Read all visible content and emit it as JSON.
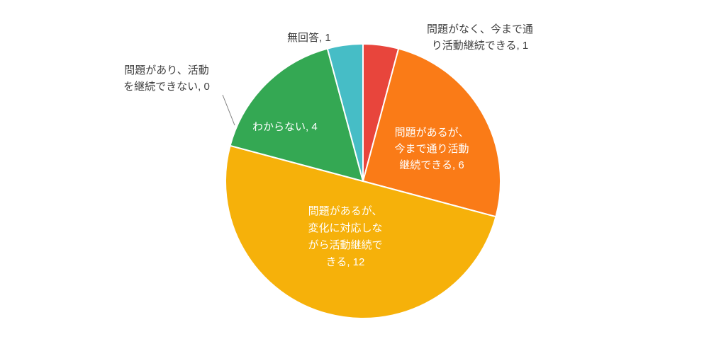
{
  "chart_data": {
    "type": "pie",
    "title": "",
    "total": 24,
    "start_angle_deg": 0,
    "direction": "clockwise",
    "legend": "none",
    "background_color": "#ffffff",
    "outside_label_color": "#404040",
    "inside_label_color": "#ffffff",
    "slices": [
      {
        "name": "問題がなく、今まで通り活動継続できる",
        "value": 1,
        "color": "#E8453C",
        "label_placement": "outside-top-right",
        "label_lines": [
          "問題がなく、今まで通",
          "り活動継続できる, 1"
        ]
      },
      {
        "name": "問題があるが、今まで通り活動継続できる",
        "value": 6,
        "color": "#FA7B17",
        "label_placement": "inside",
        "label_lines": [
          "問題があるが、",
          "今まで通り活動",
          "継続できる, 6"
        ]
      },
      {
        "name": "問題があるが、変化に対応しながら活動継続できる",
        "value": 12,
        "color": "#F6B10A",
        "label_placement": "inside",
        "label_lines": [
          "問題があるが、",
          "変化に対応しな",
          "がら活動継続で",
          "きる, 12"
        ]
      },
      {
        "name": "問題があり、活動を継続できない",
        "value": 0,
        "color": "#9AA0A6",
        "label_placement": "outside-left-with-leader",
        "label_lines": [
          "問題があり、活動",
          "を継続できない, 0"
        ]
      },
      {
        "name": "わからない",
        "value": 4,
        "color": "#34A853",
        "label_placement": "inside",
        "label_lines": [
          "わからない, 4"
        ]
      },
      {
        "name": "無回答",
        "value": 1,
        "color": "#46BDC6",
        "label_placement": "outside-top",
        "label_lines": [
          "無回答, 1"
        ]
      }
    ]
  }
}
